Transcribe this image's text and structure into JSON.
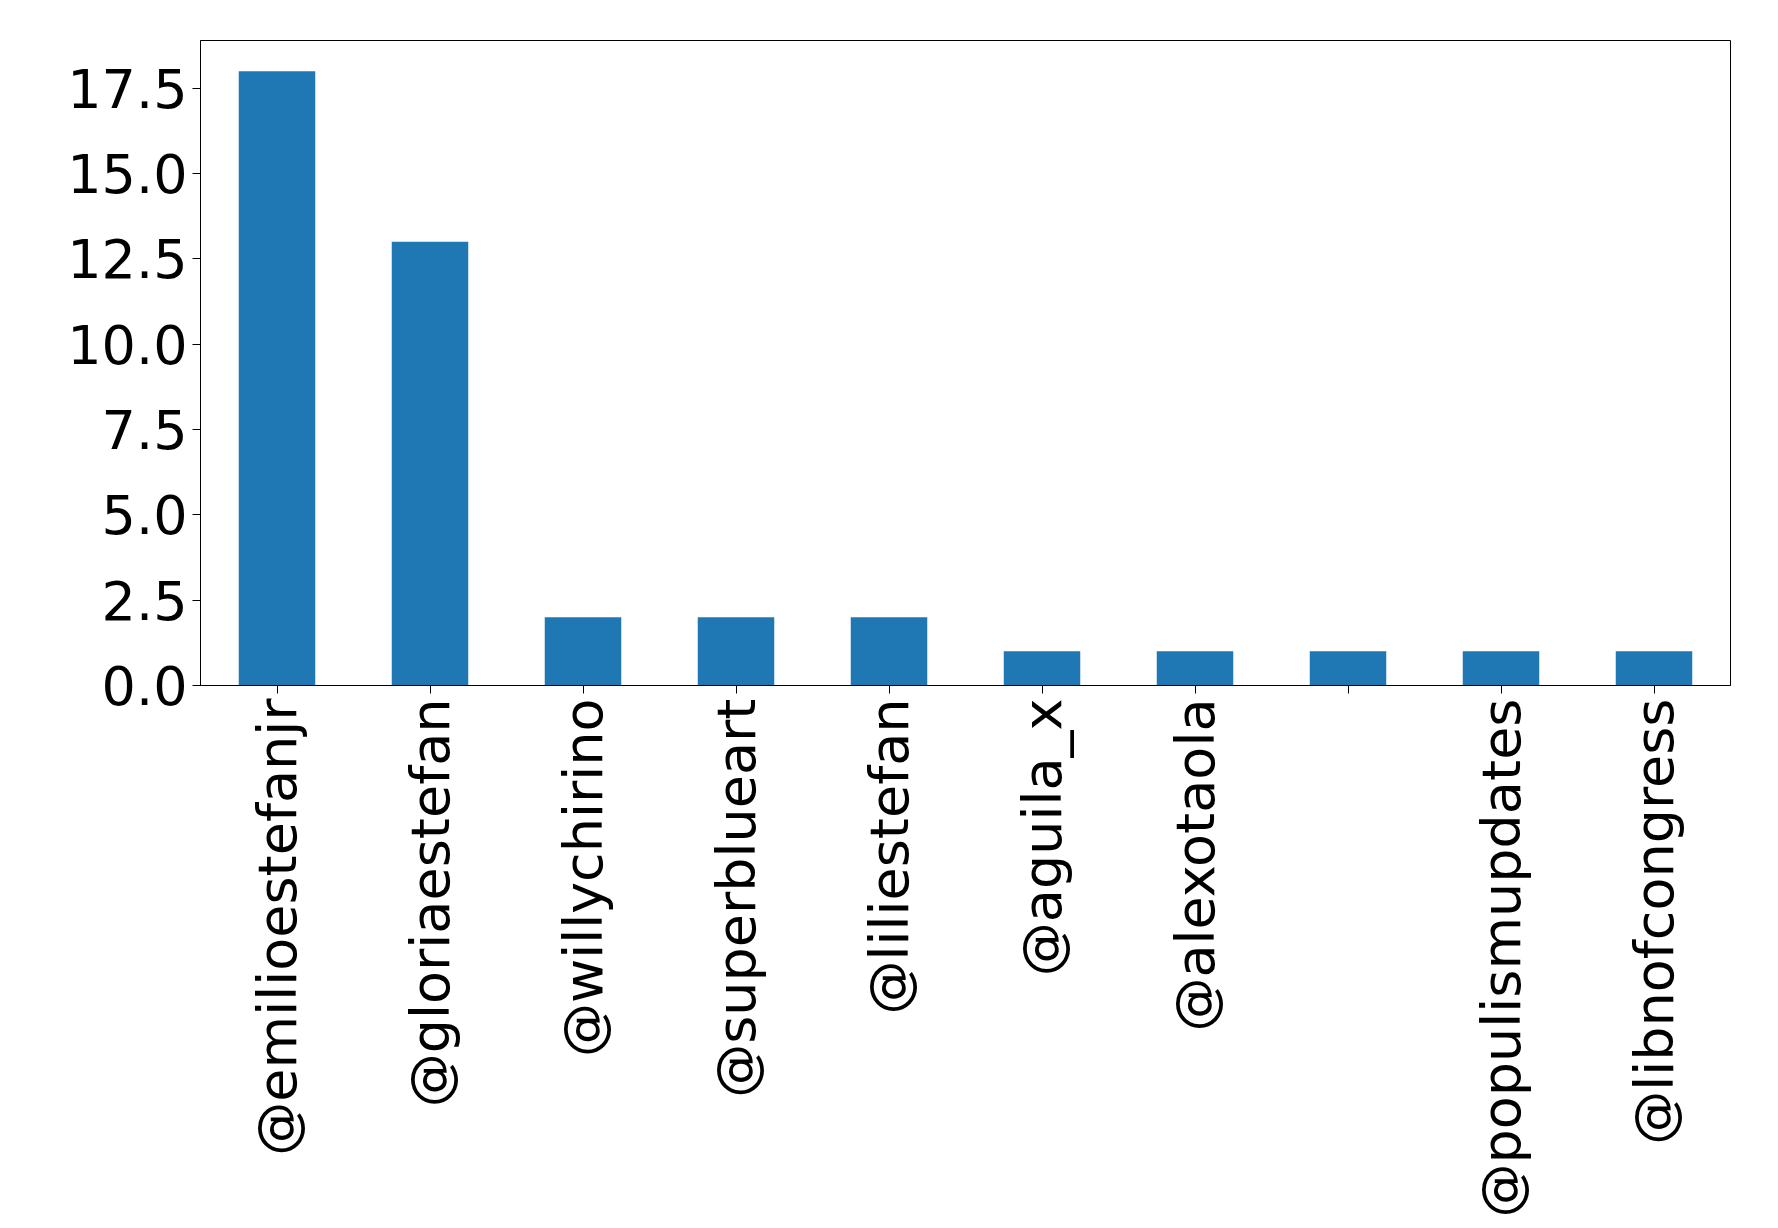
{
  "chart_data": {
    "type": "bar",
    "categories": [
      "@emilioestefanjr",
      "@gloriaestefan",
      "@willychirino",
      "@superblueart",
      "@liliestefan",
      "@aguila_x",
      "@alexotaola",
      null,
      "@populismupdates",
      "@libnofcongress"
    ],
    "values": [
      18,
      13,
      2,
      2,
      2,
      1,
      1,
      1,
      1,
      1
    ],
    "color": "#1f77b4",
    "ylim": [
      0,
      18.9
    ],
    "yticks": [
      {
        "value": 0,
        "label": "0.0"
      },
      {
        "value": 2.5,
        "label": "2.5"
      },
      {
        "value": 5,
        "label": "5.0"
      },
      {
        "value": 7.5,
        "label": "7.5"
      },
      {
        "value": 10,
        "label": "10.0"
      },
      {
        "value": 12.5,
        "label": "12.5"
      },
      {
        "value": 15,
        "label": "15.0"
      },
      {
        "value": 17.5,
        "label": "17.5"
      }
    ],
    "grid": false
  }
}
